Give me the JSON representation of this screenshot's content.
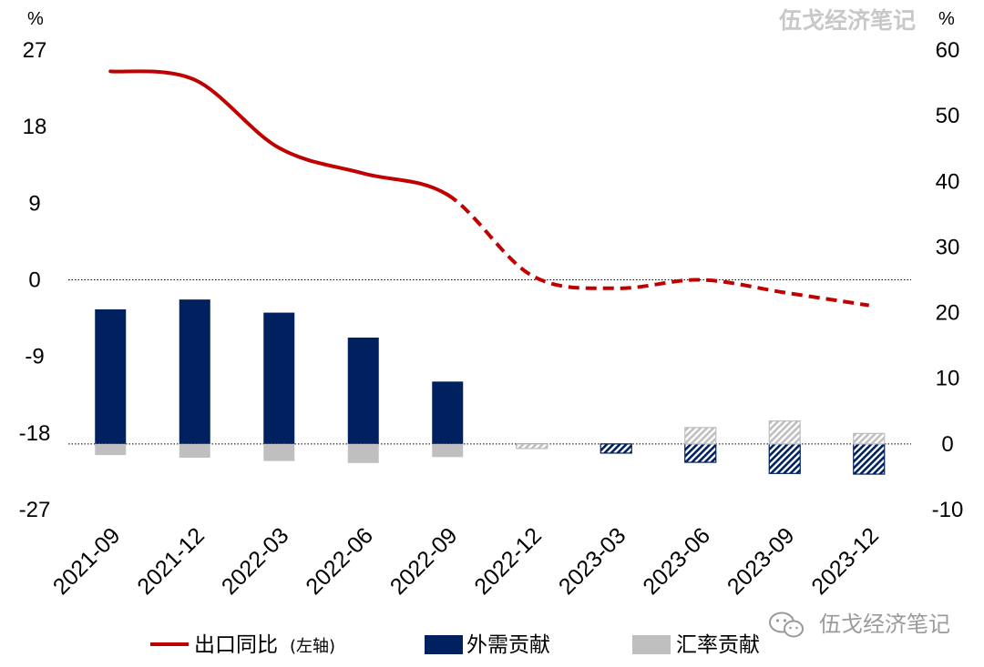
{
  "watermark": {
    "top_text": "伍戈经济笔记",
    "bottom_text": "伍戈经济笔记",
    "bottom_icon": "wechat-icon"
  },
  "colors": {
    "line": "#c00000",
    "foreign_demand": "#002060",
    "exchange_rate": "#bfbfbf"
  },
  "chart_data": {
    "type": "bar",
    "title": "",
    "categories": [
      "2021-09",
      "2021-12",
      "2022-03",
      "2022-06",
      "2022-09",
      "2022-12",
      "2023-03",
      "2023-06",
      "2023-09",
      "2023-12"
    ],
    "left_axis": {
      "unit": "%",
      "ylim": [
        -27,
        27
      ],
      "ticks": [
        "27",
        "18",
        "9",
        "0",
        "-9",
        "-18",
        "-27"
      ]
    },
    "right_axis": {
      "unit": "%",
      "ylim": [
        -10,
        60
      ],
      "ticks": [
        "60",
        "50",
        "40",
        "30",
        "20",
        "10",
        "0",
        "-10"
      ]
    },
    "legend": [
      "出口同比",
      "(左轴)",
      "外需贡献",
      "汇率贡献"
    ],
    "series": [
      {
        "name": "出口同比",
        "axis": "left",
        "type": "line",
        "values": [
          24.5,
          23.5,
          15.5,
          12.5,
          10.0,
          0.5,
          -1.0,
          0.0,
          -1.5,
          -3.0
        ],
        "forecast_from_index": 4
      },
      {
        "name": "外需贡献",
        "axis": "right",
        "type": "bar",
        "values": [
          20.5,
          22.0,
          20.0,
          16.2,
          9.5,
          -0.3,
          -1.4,
          -2.8,
          -4.5,
          -4.6
        ],
        "forecast_from_index": 5
      },
      {
        "name": "汇率贡献",
        "axis": "right",
        "type": "bar",
        "values": [
          -1.7,
          -2.1,
          -2.6,
          -2.9,
          -2.0,
          -0.7,
          0.0,
          2.5,
          3.5,
          1.6
        ],
        "forecast_from_index": 5
      }
    ],
    "reference_lines": [
      {
        "axis": "left",
        "value": 0,
        "style": "dotted"
      },
      {
        "axis": "right",
        "value": 0,
        "style": "dotted"
      }
    ]
  }
}
